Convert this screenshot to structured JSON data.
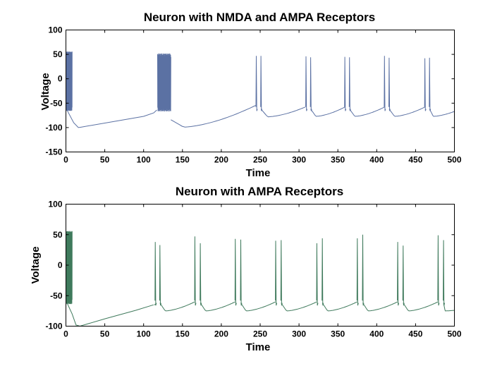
{
  "chart_data": [
    {
      "type": "line",
      "title": "Neuron with NMDA and AMPA Receptors",
      "xlabel": "Time",
      "ylabel": "Voltage",
      "xlim": [
        0,
        500
      ],
      "ylim": [
        -150,
        100
      ],
      "xticks": [
        0,
        50,
        100,
        150,
        200,
        250,
        300,
        350,
        400,
        450,
        500
      ],
      "yticks": [
        -150,
        -100,
        -50,
        0,
        50,
        100
      ],
      "grid": false,
      "line_color": "#5b71a3",
      "baseline": [
        [
          0,
          -60
        ],
        [
          10,
          -90
        ],
        [
          16,
          -100
        ],
        [
          20,
          -99
        ],
        [
          60,
          -88
        ],
        [
          100,
          -77
        ],
        [
          113,
          -70
        ],
        [
          117,
          -64
        ]
      ],
      "burst_windows": [
        {
          "start": 0,
          "end": 8,
          "low": -62,
          "high": 52,
          "rate": 4
        },
        {
          "start": 118,
          "end": 135,
          "low": -63,
          "high": 48,
          "rate": 3
        }
      ],
      "segments": [
        {
          "t0": 135,
          "t1": 245,
          "v_start": -84,
          "v_min": -99,
          "v_end": -54
        },
        {
          "t0": 251,
          "t1": 308,
          "v_start": -62,
          "v_min": -78,
          "v_end": -58
        },
        {
          "t0": 315,
          "t1": 359,
          "v_start": -62,
          "v_min": -77,
          "v_end": -58
        },
        {
          "t0": 365,
          "t1": 410,
          "v_start": -62,
          "v_min": -77,
          "v_end": -58
        },
        {
          "t0": 416,
          "t1": 462,
          "v_start": -62,
          "v_min": -77,
          "v_end": -58
        },
        {
          "t0": 468,
          "t1": 500,
          "v_start": -62,
          "v_min": -77,
          "v_end": -67
        }
      ],
      "spikes": [
        {
          "t": 245,
          "peak": 47
        },
        {
          "t": 251,
          "peak": 47
        },
        {
          "t": 309,
          "peak": 46
        },
        {
          "t": 315,
          "peak": 44
        },
        {
          "t": 359,
          "peak": 45
        },
        {
          "t": 365,
          "peak": 44
        },
        {
          "t": 410,
          "peak": 47
        },
        {
          "t": 416,
          "peak": 43
        },
        {
          "t": 462,
          "peak": 42
        },
        {
          "t": 468,
          "peak": 43
        }
      ]
    },
    {
      "type": "line",
      "title": "Neuron with AMPA Receptors",
      "xlabel": "Time",
      "ylabel": "Voltage",
      "xlim": [
        0,
        500
      ],
      "ylim": [
        -100,
        100
      ],
      "xticks": [
        0,
        50,
        100,
        150,
        200,
        250,
        300,
        350,
        400,
        450,
        500
      ],
      "yticks": [
        -100,
        -50,
        0,
        50,
        100
      ],
      "grid": false,
      "line_color": "#3f7a5c",
      "baseline": [
        [
          0,
          -58
        ],
        [
          8,
          -80
        ],
        [
          13,
          -98
        ],
        [
          18,
          -100
        ],
        [
          50,
          -88
        ],
        [
          90,
          -74
        ],
        [
          113,
          -65
        ]
      ],
      "burst_windows": [
        {
          "start": 0,
          "end": 8,
          "low": -60,
          "high": 52,
          "rate": 4
        }
      ],
      "segments": [
        {
          "t0": 114,
          "t1": 115,
          "v_start": -65,
          "v_min": -65,
          "v_end": -64
        },
        {
          "t0": 121,
          "t1": 166,
          "v_start": -62,
          "v_min": -75,
          "v_end": -60
        },
        {
          "t0": 173,
          "t1": 218,
          "v_start": -62,
          "v_min": -75,
          "v_end": -60
        },
        {
          "t0": 225,
          "t1": 270,
          "v_start": -62,
          "v_min": -75,
          "v_end": -60
        },
        {
          "t0": 277,
          "t1": 323,
          "v_start": -62,
          "v_min": -75,
          "v_end": -60
        },
        {
          "t0": 330,
          "t1": 375,
          "v_start": -62,
          "v_min": -75,
          "v_end": -60
        },
        {
          "t0": 382,
          "t1": 427,
          "v_start": -62,
          "v_min": -75,
          "v_end": -60
        },
        {
          "t0": 434,
          "t1": 479,
          "v_start": -62,
          "v_min": -75,
          "v_end": -60
        },
        {
          "t0": 486,
          "t1": 500,
          "v_start": -62,
          "v_min": -75,
          "v_end": -74
        }
      ],
      "spikes": [
        {
          "t": 115,
          "peak": 38
        },
        {
          "t": 121,
          "peak": 33
        },
        {
          "t": 166,
          "peak": 47
        },
        {
          "t": 173,
          "peak": 36
        },
        {
          "t": 218,
          "peak": 43
        },
        {
          "t": 225,
          "peak": 42
        },
        {
          "t": 270,
          "peak": 40
        },
        {
          "t": 277,
          "peak": 41
        },
        {
          "t": 323,
          "peak": 36
        },
        {
          "t": 330,
          "peak": 44
        },
        {
          "t": 375,
          "peak": 44
        },
        {
          "t": 382,
          "peak": 50
        },
        {
          "t": 427,
          "peak": 38
        },
        {
          "t": 434,
          "peak": 32
        },
        {
          "t": 479,
          "peak": 49
        },
        {
          "t": 486,
          "peak": 41
        }
      ]
    }
  ]
}
